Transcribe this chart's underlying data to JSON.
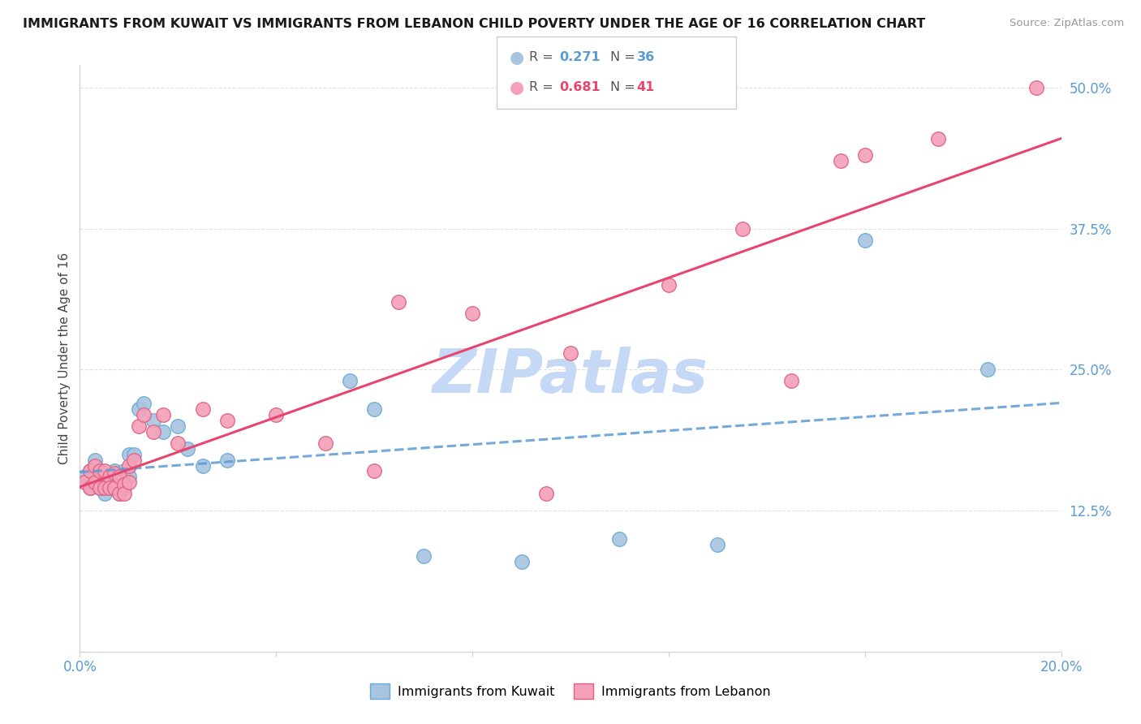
{
  "title": "IMMIGRANTS FROM KUWAIT VS IMMIGRANTS FROM LEBANON CHILD POVERTY UNDER THE AGE OF 16 CORRELATION CHART",
  "source": "Source: ZipAtlas.com",
  "ylabel": "Child Poverty Under the Age of 16",
  "xlim": [
    0.0,
    0.2
  ],
  "ylim": [
    0.0,
    0.52
  ],
  "xticks": [
    0.0,
    0.04,
    0.08,
    0.12,
    0.16,
    0.2
  ],
  "ytick_positions": [
    0.125,
    0.25,
    0.375,
    0.5
  ],
  "ytick_labels": [
    "12.5%",
    "25.0%",
    "37.5%",
    "50.0%"
  ],
  "kuwait_color": "#a8c4e0",
  "kuwait_edge": "#6aaad4",
  "lebanon_color": "#f4a0b8",
  "lebanon_edge": "#e06080",
  "trendline_kuwait_color": "#5b9bd5",
  "trendline_lebanon_color": "#e8456e",
  "watermark_color": "#c8d8f0",
  "background_color": "#ffffff",
  "grid_color": "#e0e0e0",
  "kuwait_x": [
    0.001,
    0.002,
    0.002,
    0.003,
    0.003,
    0.004,
    0.004,
    0.005,
    0.005,
    0.006,
    0.006,
    0.007,
    0.007,
    0.008,
    0.008,
    0.009,
    0.009,
    0.01,
    0.01,
    0.011,
    0.012,
    0.013,
    0.015,
    0.017,
    0.02,
    0.022,
    0.025,
    0.03,
    0.055,
    0.06,
    0.07,
    0.09,
    0.11,
    0.13,
    0.16,
    0.185
  ],
  "kuwait_y": [
    0.155,
    0.16,
    0.145,
    0.17,
    0.155,
    0.16,
    0.145,
    0.15,
    0.14,
    0.155,
    0.145,
    0.16,
    0.15,
    0.155,
    0.14,
    0.16,
    0.145,
    0.175,
    0.155,
    0.175,
    0.215,
    0.22,
    0.205,
    0.195,
    0.2,
    0.18,
    0.165,
    0.17,
    0.24,
    0.215,
    0.085,
    0.08,
    0.1,
    0.095,
    0.365,
    0.25
  ],
  "lebanon_x": [
    0.001,
    0.002,
    0.002,
    0.003,
    0.003,
    0.004,
    0.004,
    0.005,
    0.005,
    0.006,
    0.006,
    0.007,
    0.007,
    0.008,
    0.008,
    0.009,
    0.009,
    0.01,
    0.01,
    0.011,
    0.012,
    0.013,
    0.015,
    0.017,
    0.02,
    0.025,
    0.03,
    0.04,
    0.05,
    0.06,
    0.065,
    0.08,
    0.095,
    0.1,
    0.12,
    0.135,
    0.145,
    0.155,
    0.16,
    0.175,
    0.195
  ],
  "lebanon_y": [
    0.15,
    0.16,
    0.145,
    0.165,
    0.15,
    0.16,
    0.145,
    0.16,
    0.145,
    0.155,
    0.145,
    0.158,
    0.145,
    0.155,
    0.14,
    0.148,
    0.14,
    0.15,
    0.165,
    0.17,
    0.2,
    0.21,
    0.195,
    0.21,
    0.185,
    0.215,
    0.205,
    0.21,
    0.185,
    0.16,
    0.31,
    0.3,
    0.14,
    0.265,
    0.325,
    0.375,
    0.24,
    0.435,
    0.44,
    0.455,
    0.5
  ],
  "trendline_x": [
    0.0,
    0.2
  ]
}
